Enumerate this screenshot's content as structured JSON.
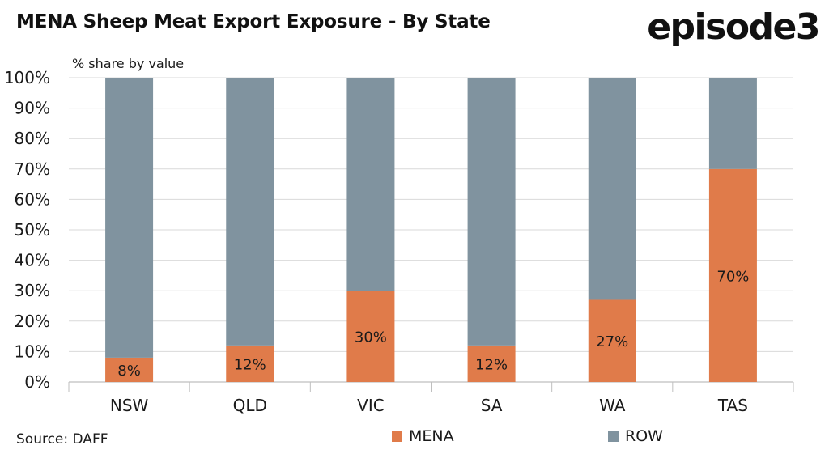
{
  "header": {
    "title": "MENA Sheep Meat Export Exposure - By State",
    "logo_text": "episode3"
  },
  "footer": {
    "source": "Source: DAFF"
  },
  "chart_data": {
    "type": "bar",
    "stacked": true,
    "ylabel": "% share by value",
    "ylim": [
      0,
      100
    ],
    "y_ticks": [
      "0%",
      "10%",
      "20%",
      "30%",
      "40%",
      "50%",
      "60%",
      "70%",
      "80%",
      "90%",
      "100%"
    ],
    "categories": [
      "NSW",
      "QLD",
      "VIC",
      "SA",
      "WA",
      "TAS"
    ],
    "series": [
      {
        "name": "MENA",
        "color": "#e07b4a",
        "values": [
          8,
          12,
          30,
          12,
          27,
          70
        ],
        "labels": [
          "8%",
          "12%",
          "30%",
          "12%",
          "27%",
          "70%"
        ]
      },
      {
        "name": "ROW",
        "color": "#80939f",
        "values": [
          92,
          88,
          70,
          88,
          73,
          30
        ]
      }
    ],
    "grid": true,
    "legend_position": "bottom"
  }
}
